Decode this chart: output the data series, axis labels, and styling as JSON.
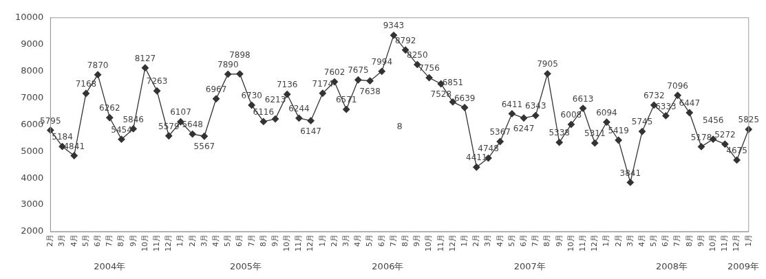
{
  "chart_data": {
    "type": "line",
    "categories": [
      "2月",
      "3月",
      "4月",
      "5月",
      "6月",
      "7月",
      "8月",
      "9月",
      "10月",
      "11月",
      "12月",
      "1月",
      "2月",
      "3月",
      "4月",
      "5月",
      "6月",
      "7月",
      "8月",
      "9月",
      "10月",
      "11月",
      "12月",
      "1月",
      "2月",
      "3月",
      "4月",
      "5月",
      "6月",
      "7月",
      "8月",
      "9月",
      "10月",
      "11月",
      "12月",
      "1月",
      "2月",
      "3月",
      "4月",
      "5月",
      "6月",
      "7月",
      "8月",
      "9月",
      "10月",
      "11月",
      "12月",
      "1月",
      "2月",
      "3月",
      "4月",
      "5月",
      "6月",
      "7月",
      "8月",
      "9月",
      "10月",
      "11月",
      "12月",
      "1月"
    ],
    "series": [
      {
        "color": "#333333",
        "values": [
          5795,
          5184,
          4841,
          7168,
          7870,
          6262,
          5454,
          5846,
          8127,
          7263,
          5579,
          6107,
          5648,
          5567,
          6967,
          7890,
          7898,
          6730,
          6116,
          6213,
          7136,
          6244,
          6147,
          7174,
          7602,
          6571,
          7675,
          7638,
          7994,
          9343,
          8792,
          8250,
          7756,
          7528,
          6851,
          6639,
          4411,
          4748,
          5367,
          6411,
          6247,
          6343,
          7905,
          5338,
          6008,
          6613,
          5311,
          6094,
          5419,
          3841,
          5745,
          6732,
          6333,
          7096,
          6447,
          5178,
          5456,
          5272,
          4675,
          5825
        ]
      }
    ],
    "ylim": [
      2000,
      10000
    ],
    "yticks": [
      2000,
      3000,
      4000,
      5000,
      6000,
      7000,
      8000,
      9000,
      10000
    ],
    "grid": false,
    "legend": false,
    "marker": "diamond",
    "line_style": "solid",
    "data_labels": true,
    "annotations": [
      "2004年",
      "2005年",
      "2006年",
      "2007年",
      "2008年",
      "2009年",
      "8"
    ]
  }
}
